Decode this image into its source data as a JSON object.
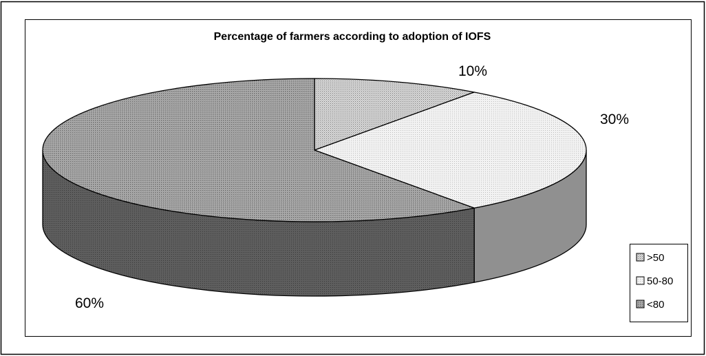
{
  "chart_data": {
    "type": "pie",
    "title": "Percentage of farmers according to adoption of IOFS",
    "categories": [
      ">50",
      "50-80",
      "<80"
    ],
    "values": [
      10,
      30,
      60
    ],
    "data_labels": [
      "10%",
      "30%",
      "60%"
    ],
    "three_d": true,
    "legend_position": "right",
    "colors": {
      "slice_0_top": "#c9c9c9",
      "slice_0_side": "#6e6e6e",
      "slice_1_top": "#e9e9e9",
      "slice_1_side": "#909090",
      "slice_2_top": "#a3a3a3",
      "slice_2_side": "#5a5a5a"
    }
  }
}
